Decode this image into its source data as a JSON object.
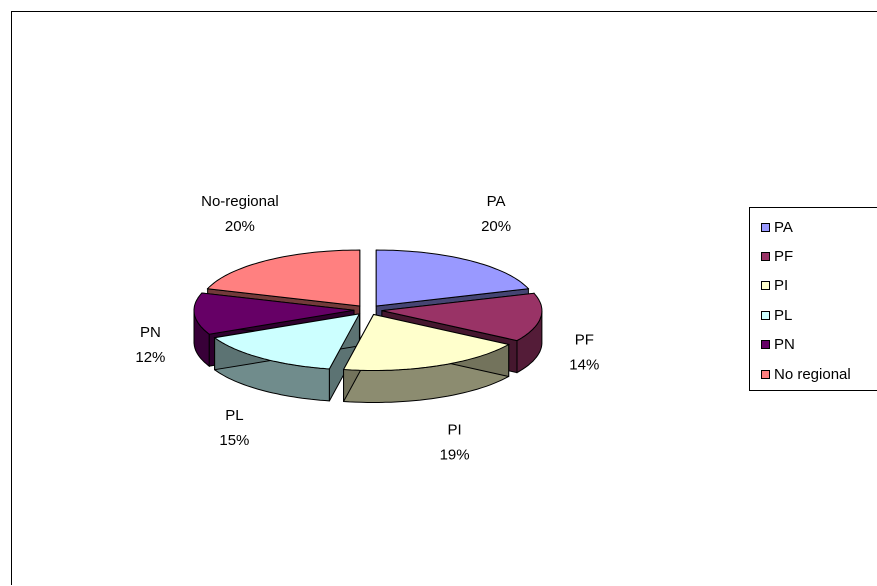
{
  "chart_data": {
    "type": "pie",
    "style": "3d-exploded",
    "title": "",
    "slices": [
      {
        "category": "PA",
        "label": "PA",
        "value": 20,
        "percent_label": "20%",
        "color": "#9999FF"
      },
      {
        "category": "PF",
        "label": "PF",
        "value": 14,
        "percent_label": "14%",
        "color": "#993366"
      },
      {
        "category": "PI",
        "label": "PI",
        "value": 19,
        "percent_label": "19%",
        "color": "#FFFFCC"
      },
      {
        "category": "PL",
        "label": "PL",
        "value": 15,
        "percent_label": "15%",
        "color": "#CCFFFF"
      },
      {
        "category": "PN",
        "label": "PN",
        "value": 12,
        "percent_label": "12%",
        "color": "#660066"
      },
      {
        "category": "No regional",
        "label": "No-regional",
        "value": 20,
        "percent_label": "20%",
        "color": "#FF8080"
      }
    ],
    "legend": {
      "position": "right",
      "entries": [
        "PA",
        "PF",
        "PI",
        "PL",
        "PN",
        "No regional"
      ]
    }
  }
}
